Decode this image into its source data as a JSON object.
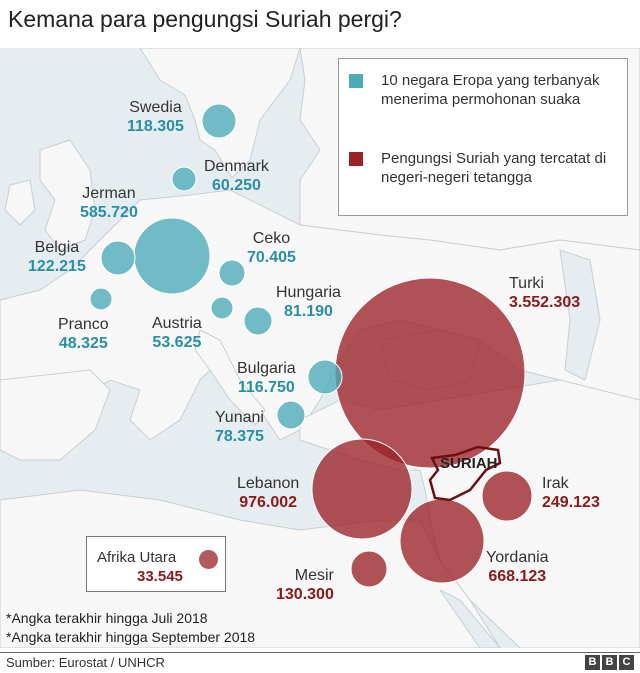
{
  "title": "Kemana para pengungsi Suriah pergi?",
  "colors": {
    "sea": "#e8eef2",
    "land": "#f7f7f7",
    "border": "#c8cfd4",
    "eu_bubble": "#4aaab8",
    "syr_bubble": "#9b2328",
    "syria_outline": "#6b1014"
  },
  "legend": {
    "eu": "10 negara Eropa yang terbanyak menerima permohonan suaka",
    "neighbors": "Pengungsi Suriah yang tercatat di negeri-negeri tetangga"
  },
  "eu": {
    "swedia": {
      "name": "Swedia",
      "value": "118.305"
    },
    "denmark": {
      "name": "Denmark",
      "value": "60.250"
    },
    "jerman": {
      "name": "Jerman",
      "value": "585.720"
    },
    "belgia": {
      "name": "Belgia",
      "value": "122.215"
    },
    "ceko": {
      "name": "Ceko",
      "value": "70.405"
    },
    "pranco": {
      "name": "Pranco",
      "value": "48.325"
    },
    "austria": {
      "name": "Austria",
      "value": "53.625"
    },
    "hungaria": {
      "name": "Hungaria",
      "value": "81.190"
    },
    "bulgaria": {
      "name": "Bulgaria",
      "value": "116.750"
    },
    "yunani": {
      "name": "Yunani",
      "value": "78.375"
    }
  },
  "neighbors": {
    "turki": {
      "name": "Turki",
      "value": "3.552.303"
    },
    "lebanon": {
      "name": "Lebanon",
      "value": "976.002"
    },
    "irak": {
      "name": "Irak",
      "value": "249.123"
    },
    "yordania": {
      "name": "Yordania",
      "value": "668.123"
    },
    "mesir": {
      "name": "Mesir",
      "value": "130.300"
    },
    "afrika": {
      "name": "Afrika Utara",
      "value": "33.545"
    }
  },
  "syria_label": "SURIAH",
  "notes": [
    "*Angka terakhir hingga Juli 2018",
    "*Angka terakhir hingga September 2018"
  ],
  "source": "Sumber: Eurostat / UNHCR",
  "brand": [
    "B",
    "B",
    "C"
  ]
}
